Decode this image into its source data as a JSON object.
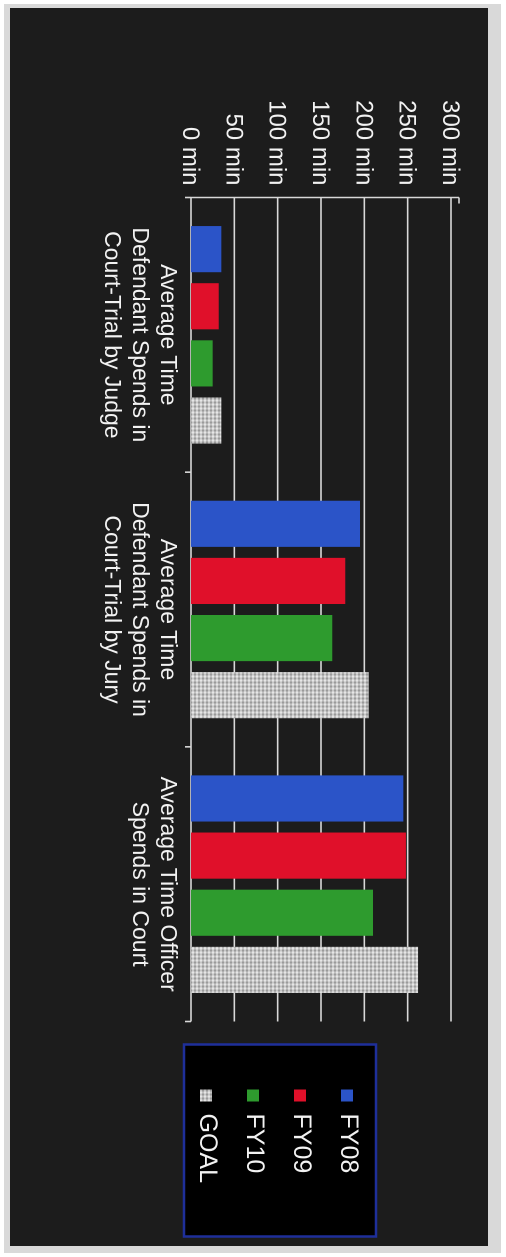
{
  "chart_data": {
    "type": "bar",
    "orientation": "vertical",
    "rotated": "90-degrees-clockwise",
    "categories": [
      [
        "Average Time",
        "Defendant Spends in",
        "Court-Trial by Judge"
      ],
      [
        "Average Time",
        "Defendant Spends in",
        "Court-Trial by Jury"
      ],
      [
        "Average Time Officer",
        "Spends in Court"
      ]
    ],
    "series": [
      {
        "name": "FY08",
        "color": "#2b54c8",
        "pattern": "solid",
        "values": [
          35,
          195,
          245
        ]
      },
      {
        "name": "FY09",
        "color": "#e0102a",
        "pattern": "solid",
        "values": [
          32,
          178,
          248
        ]
      },
      {
        "name": "FY10",
        "color": "#2e9b2e",
        "pattern": "solid",
        "values": [
          25,
          163,
          210
        ]
      },
      {
        "name": "GOAL",
        "color": "#c8c8c8",
        "pattern": "dotted",
        "values": [
          35,
          205,
          262
        ]
      }
    ],
    "y_ticks": [
      "0 min",
      "50 min",
      "100 min",
      "150 min",
      "200 min",
      "250 min",
      "300 min"
    ],
    "ylim": [
      0,
      300
    ],
    "grid": true,
    "legend_position": "right",
    "legend_border_color": "#1e2f9a"
  }
}
